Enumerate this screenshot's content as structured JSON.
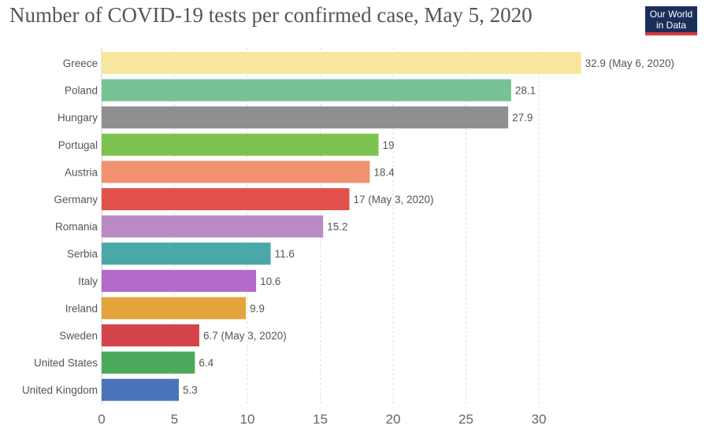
{
  "chart_data": {
    "type": "bar",
    "orientation": "horizontal",
    "title": "Number of COVID-19 tests per confirmed case, May 5, 2020",
    "categories": [
      "Greece",
      "Poland",
      "Hungary",
      "Portugal",
      "Austria",
      "Germany",
      "Romania",
      "Serbia",
      "Italy",
      "Ireland",
      "Sweden",
      "United States",
      "United Kingdom"
    ],
    "values": [
      32.9,
      28.1,
      27.9,
      19,
      18.4,
      17,
      15.2,
      11.6,
      10.6,
      9.9,
      6.7,
      6.4,
      5.3
    ],
    "data_labels": [
      "32.9 (May 6, 2020)",
      "28.1",
      "27.9",
      "19",
      "18.4",
      "17 (May 3, 2020)",
      "15.2",
      "11.6",
      "10.6",
      "9.9",
      "6.7 (May 3, 2020)",
      "6.4",
      "5.3"
    ],
    "colors": [
      "#f8e69c",
      "#78c396",
      "#8f8f8f",
      "#7cc251",
      "#f0916f",
      "#e2514b",
      "#b98ac6",
      "#4ba8a9",
      "#b46ac8",
      "#e4a33b",
      "#d4444b",
      "#4ba95b",
      "#4b73b9"
    ],
    "xlim": [
      0,
      33
    ],
    "xticks": [
      "0",
      "5",
      "10",
      "15",
      "20",
      "25",
      "30"
    ],
    "grid": "vertical dashed"
  },
  "logo": {
    "text": "Our World in Data",
    "line1": "Our World",
    "line2": "in Data"
  }
}
